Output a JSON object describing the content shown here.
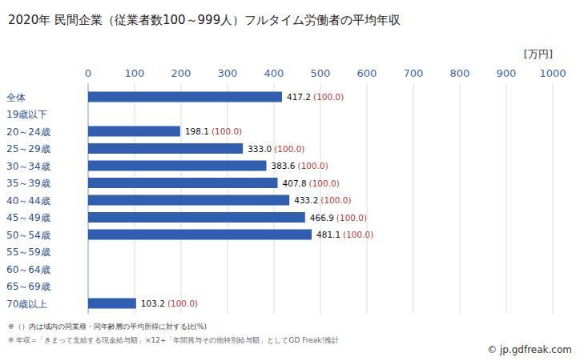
{
  "chart_data": {
    "type": "bar",
    "orientation": "horizontal",
    "title": "2020年 民間企業（従業者数100～999人）フルタイム労働者の平均年収",
    "unit_label": "[万円]",
    "categories": [
      "全体",
      "19歳以下",
      "20～24歳",
      "25～29歳",
      "30～34歳",
      "35～39歳",
      "40～44歳",
      "45～49歳",
      "50～54歳",
      "55～59歳",
      "60～64歳",
      "65～69歳",
      "70歳以上"
    ],
    "values": [
      417.2,
      null,
      198.1,
      333.0,
      383.6,
      407.8,
      433.2,
      466.9,
      481.1,
      null,
      null,
      null,
      103.2
    ],
    "value_labels": [
      "417.2",
      null,
      "198.1",
      "333.0",
      "383.6",
      "407.8",
      "433.2",
      "466.9",
      "481.1",
      null,
      null,
      null,
      "103.2"
    ],
    "ratio_labels": [
      "(100.0)",
      null,
      "(100.0)",
      "(100.0)",
      "(100.0)",
      "(100.0)",
      "(100.0)",
      "(100.0)",
      "(100.0)",
      null,
      null,
      null,
      "(100.0)"
    ],
    "color": "#2f5fae",
    "xlim": [
      0,
      1000
    ],
    "xticks": [
      0,
      100,
      200,
      300,
      400,
      500,
      600,
      700,
      800,
      900,
      1000
    ],
    "grid": true,
    "data_labels": true,
    "notes": [
      "※（）内は域内の同業種・同年齢層の平均所得に対する比(%)",
      "※ 年収=「きまって支給する現金給与額」×12+「年間賞与その他特別給与額」としてGD Freak!推計"
    ],
    "credit": "© jp.gdfreak.com"
  }
}
